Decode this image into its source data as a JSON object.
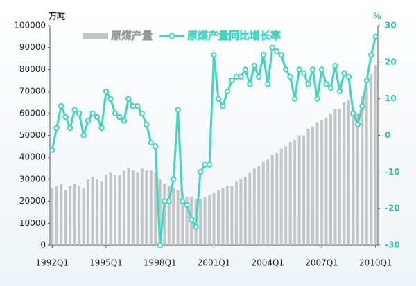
{
  "chart_data": {
    "type": "bar",
    "y_unit": "万吨",
    "y2_unit": "%",
    "categories": [
      "1992Q1",
      null,
      null,
      null,
      null,
      null,
      null,
      null,
      null,
      null,
      null,
      null,
      "1995Q1",
      null,
      null,
      null,
      null,
      null,
      null,
      null,
      null,
      null,
      null,
      null,
      "1998Q1",
      null,
      null,
      null,
      null,
      null,
      null,
      null,
      null,
      null,
      null,
      null,
      "2001Q1",
      null,
      null,
      null,
      null,
      null,
      null,
      null,
      null,
      null,
      null,
      null,
      "2004Q1",
      null,
      null,
      null,
      null,
      null,
      null,
      null,
      null,
      null,
      null,
      null,
      "2007Q1",
      null,
      null,
      null,
      null,
      null,
      null,
      null,
      null,
      null,
      null,
      null,
      "2010Q1"
    ],
    "series": [
      {
        "name": "原煤产量",
        "type": "bar",
        "color": "#c4c4c4",
        "values": [
          26000,
          27000,
          28000,
          25000,
          27000,
          28000,
          27000,
          26000,
          30000,
          31000,
          30000,
          29000,
          32000,
          33000,
          32000,
          32000,
          34000,
          35000,
          34000,
          33000,
          35000,
          34000,
          34000,
          33000,
          30000,
          28000,
          27000,
          26000,
          25000,
          24000,
          22000,
          22000,
          21000,
          21000,
          22000,
          23000,
          24000,
          25000,
          26000,
          27000,
          27000,
          29000,
          30000,
          31000,
          33000,
          35000,
          36000,
          38000,
          39000,
          41000,
          42000,
          44000,
          45000,
          47000,
          48000,
          50000,
          50000,
          53000,
          54000,
          56000,
          57000,
          58000,
          60000,
          62000,
          62000,
          65000,
          66000,
          63000,
          60000,
          68000,
          72000,
          78000,
          82000
        ]
      },
      {
        "name": "原煤产量同比增长率",
        "type": "line",
        "axis": "y2",
        "color": "#3fd6c4",
        "values": [
          -4,
          2,
          8,
          5,
          2,
          7,
          6,
          0,
          4,
          6,
          5,
          2,
          12,
          10,
          6,
          5,
          4,
          10,
          8,
          8,
          6,
          3,
          -2,
          -3,
          -30,
          -18,
          -18,
          -12,
          7,
          -18,
          -19,
          -23,
          -25,
          -10,
          -8,
          -8,
          22,
          10,
          8,
          12,
          15,
          16,
          16,
          18,
          14,
          19,
          16,
          22,
          14,
          24,
          23,
          22,
          18,
          16,
          10,
          18,
          17,
          14,
          18,
          10,
          18,
          14,
          13,
          19,
          12,
          17,
          16,
          6,
          3,
          8,
          15,
          22,
          27
        ]
      }
    ],
    "ylim": [
      0,
      100000
    ],
    "yticks": [
      0,
      10000,
      20000,
      30000,
      40000,
      50000,
      60000,
      70000,
      80000,
      90000,
      100000
    ],
    "y2lim": [
      -30,
      30
    ],
    "y2ticks": [
      -30,
      -20,
      -10,
      0,
      10,
      20,
      30
    ],
    "grid": true
  }
}
